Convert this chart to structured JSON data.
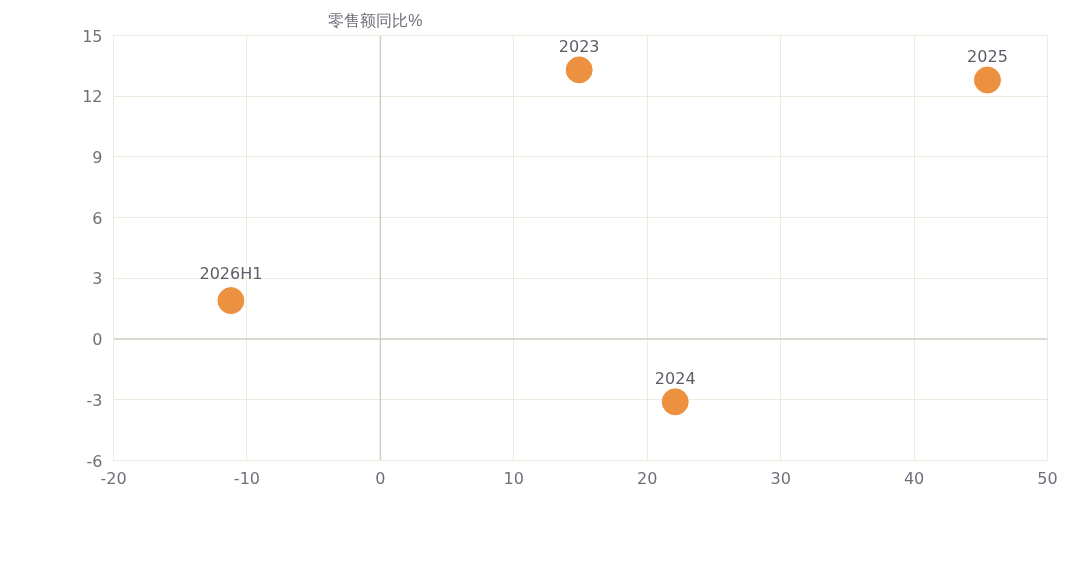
{
  "chart_data": {
    "type": "scatter",
    "ylabel": "零售额同比%",
    "x": [
      14.9,
      22.1,
      45.5,
      -11.2
    ],
    "values": [
      13.3,
      -3.1,
      12.8,
      1.9
    ],
    "color": "#ec9140",
    "annotations": [
      {
        "text": "2023",
        "x": 14.9,
        "y": 13.3
      },
      {
        "text": "2024",
        "x": 22.1,
        "y": -3.1
      },
      {
        "text": "2025",
        "x": 45.5,
        "y": 12.8
      },
      {
        "text": "2026H1",
        "x": -11.2,
        "y": 1.9
      }
    ],
    "xlim": [
      -20,
      50
    ],
    "xticks": [
      -20,
      -10,
      0,
      10,
      20,
      30,
      40,
      50
    ],
    "ylim": [
      -6,
      15
    ],
    "yticks": [
      -6,
      -3,
      0,
      3,
      6,
      9,
      12,
      15
    ],
    "grid": true,
    "marker": "circle"
  }
}
